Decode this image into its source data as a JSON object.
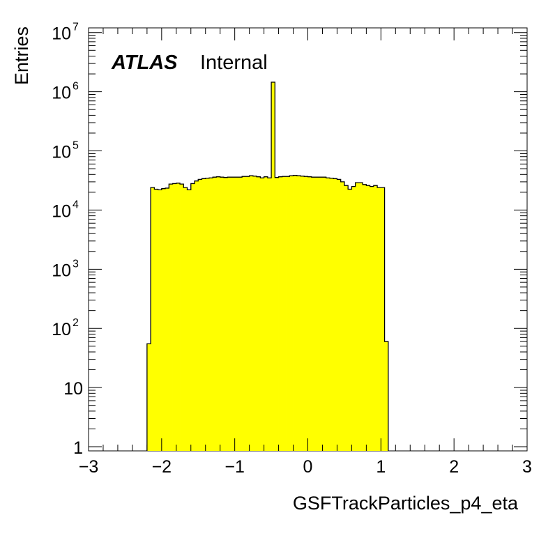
{
  "chart_data": {
    "type": "bar",
    "xlabel": "GSFTrackParticles_p4_eta",
    "ylabel": "Entries",
    "annotation": {
      "label": "ATLAS",
      "status": "Internal"
    },
    "xlim": [
      -3,
      3
    ],
    "ylim": [
      0.85,
      12000000
    ],
    "yscale": "log",
    "grid": false,
    "legend": "none",
    "fill_color": "#ffff00",
    "line_color": "#000000",
    "x_ticks": [
      "−3",
      "−2",
      "−1",
      "0",
      "1",
      "2",
      "3"
    ],
    "y_ticks": [
      {
        "value": 1,
        "base": "1",
        "exp": ""
      },
      {
        "value": 10,
        "base": "10",
        "exp": ""
      },
      {
        "value": 100,
        "base": "10",
        "exp": "2"
      },
      {
        "value": 1000,
        "base": "10",
        "exp": "3"
      },
      {
        "value": 10000,
        "base": "10",
        "exp": "4"
      },
      {
        "value": 100000,
        "base": "10",
        "exp": "5"
      },
      {
        "value": 1000000,
        "base": "10",
        "exp": "6"
      },
      {
        "value": 10000000,
        "base": "10",
        "exp": "7"
      }
    ],
    "bin_edges_start": -2.2,
    "bin_width": 0.05,
    "values": [
      55,
      24000,
      22500,
      22000,
      23000,
      23500,
      27500,
      28000,
      28500,
      27500,
      24000,
      22000,
      28000,
      31000,
      33000,
      34000,
      34500,
      35000,
      36000,
      36500,
      36000,
      35500,
      36000,
      36000,
      36000,
      36000,
      37000,
      37000,
      38000,
      37500,
      36500,
      35000,
      36500,
      35000,
      1450000,
      35500,
      36500,
      37000,
      37000,
      38000,
      38500,
      38000,
      37500,
      37000,
      36500,
      36000,
      36000,
      36000,
      36000,
      35000,
      34500,
      34000,
      33000,
      30000,
      26000,
      22500,
      25000,
      29000,
      29000,
      27000,
      26000,
      25000,
      26000,
      24000,
      24000,
      60
    ]
  }
}
